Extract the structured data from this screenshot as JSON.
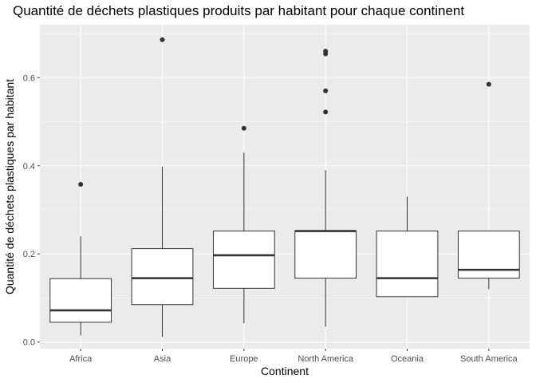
{
  "chart_data": {
    "type": "boxplot",
    "title": "Quantité de déchets plastiques produits par habitant pour chaque continent",
    "xlabel": "Continent",
    "ylabel": "Quantité de déchets plastiques par habitant",
    "ylim": [
      -0.015,
      0.72
    ],
    "y_ticks": [
      0.0,
      0.2,
      0.4,
      0.6
    ],
    "y_tick_labels": [
      "0.0",
      "0.2",
      "0.4",
      "0.6"
    ],
    "grid": true,
    "colors": {
      "panel": "#ebebeb",
      "grid_major": "#ffffff",
      "box_fill": "#ffffff",
      "box_line": "#333333",
      "point": "#333333"
    },
    "categories": [
      "Africa",
      "Asia",
      "Europe",
      "North America",
      "Oceania",
      "South America"
    ],
    "boxes": [
      {
        "category": "Africa",
        "whisker_low": 0.015,
        "q1": 0.045,
        "median": 0.072,
        "q3": 0.144,
        "whisker_high": 0.24,
        "outliers": [
          0.358
        ]
      },
      {
        "category": "Asia",
        "whisker_low": 0.012,
        "q1": 0.085,
        "median": 0.145,
        "q3": 0.212,
        "whisker_high": 0.398,
        "outliers": [
          0.686
        ]
      },
      {
        "category": "Europe",
        "whisker_low": 0.043,
        "q1": 0.122,
        "median": 0.197,
        "q3": 0.252,
        "whisker_high": 0.43,
        "outliers": [
          0.485
        ]
      },
      {
        "category": "North America",
        "whisker_low": 0.035,
        "q1": 0.145,
        "median": 0.252,
        "q3": 0.252,
        "whisker_high": 0.39,
        "outliers": [
          0.522,
          0.57,
          0.654,
          0.66
        ]
      },
      {
        "category": "Oceania",
        "whisker_low": 0.103,
        "q1": 0.103,
        "median": 0.145,
        "q3": 0.252,
        "whisker_high": 0.33,
        "outliers": []
      },
      {
        "category": "South America",
        "whisker_low": 0.12,
        "q1": 0.145,
        "median": 0.164,
        "q3": 0.252,
        "whisker_high": 0.252,
        "outliers": [
          0.585
        ]
      }
    ]
  }
}
